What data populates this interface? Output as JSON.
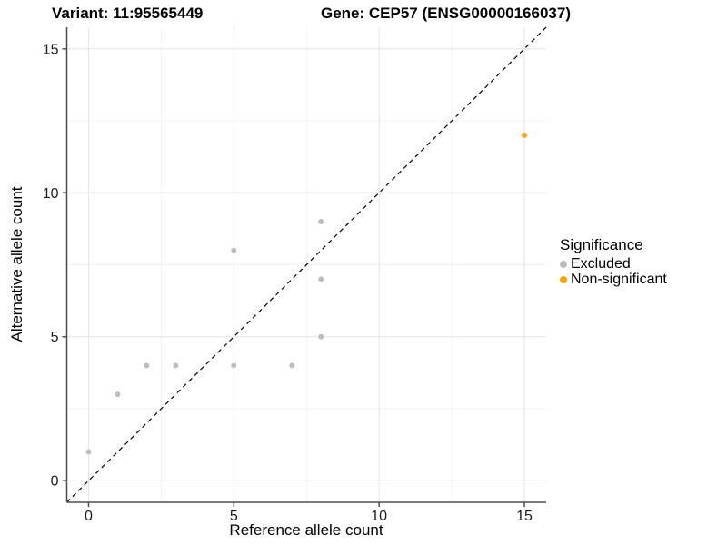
{
  "header": {
    "variant_title": "Variant: 11:95565449",
    "gene_title": "Gene: CEP57 (ENSG00000166037)"
  },
  "axes": {
    "x_label": "Reference allele count",
    "y_label": "Alternative allele count"
  },
  "legend": {
    "title": "Significance",
    "items": [
      {
        "label": "Excluded",
        "color": "#bdbdbd"
      },
      {
        "label": "Non-significant",
        "color": "#FFA500"
      }
    ]
  },
  "colors": {
    "grid_major": "#e4e4e4",
    "grid_minor": "#f2f2f2",
    "axis_line": "#4d4d4d",
    "tick_mark": "#4d4d4d",
    "tick_text": "#1a1a1a",
    "identity_line": "#000000",
    "panel_background": "#ffffff"
  },
  "chart_data": {
    "type": "scatter",
    "title": "Variant: 11:95565449 — Gene: CEP57 (ENSG00000166037)",
    "xlabel": "Reference allele count",
    "ylabel": "Alternative allele count",
    "xlim": [
      -0.75,
      15.75
    ],
    "ylim": [
      -0.75,
      15.75
    ],
    "x_ticks": [
      0,
      5,
      10,
      15
    ],
    "y_ticks": [
      0,
      5,
      10,
      15
    ],
    "x_minor_ticks": [
      2.5,
      7.5,
      12.5
    ],
    "y_minor_ticks": [
      2.5,
      7.5,
      12.5
    ],
    "grid": true,
    "legend_position": "right",
    "identity_line": {
      "type": "y=x",
      "style": "dashed"
    },
    "point_radius": 3,
    "series": [
      {
        "name": "Excluded",
        "color": "#bdbdbd",
        "points": [
          [
            0,
            1
          ],
          [
            1,
            3
          ],
          [
            2,
            4
          ],
          [
            3,
            4
          ],
          [
            5,
            4
          ],
          [
            5,
            8
          ],
          [
            7,
            4
          ],
          [
            8,
            5
          ],
          [
            8,
            7
          ],
          [
            8,
            9
          ]
        ]
      },
      {
        "name": "Non-significant",
        "color": "#FFA500",
        "points": [
          [
            15,
            12
          ]
        ]
      }
    ]
  }
}
